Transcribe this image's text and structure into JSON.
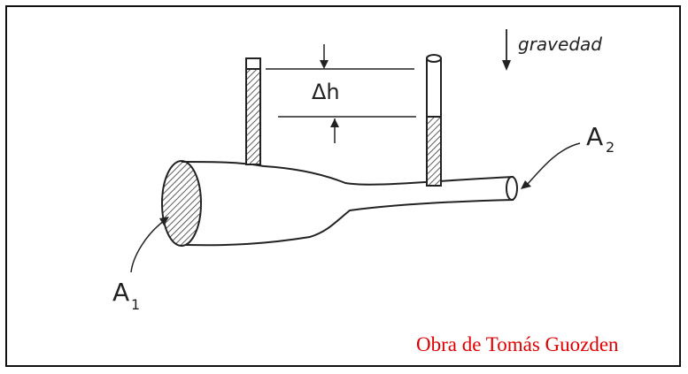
{
  "labels": {
    "gravity": "gravedad",
    "delta_h": "Δh",
    "area_1": "A",
    "area_1_sub": "1",
    "area_2": "A",
    "area_2_sub": "2"
  },
  "credit": "Obra de Tomás Guozden",
  "colors": {
    "ink": "#222222",
    "credit": "#e00000",
    "hatch": "#333333"
  }
}
